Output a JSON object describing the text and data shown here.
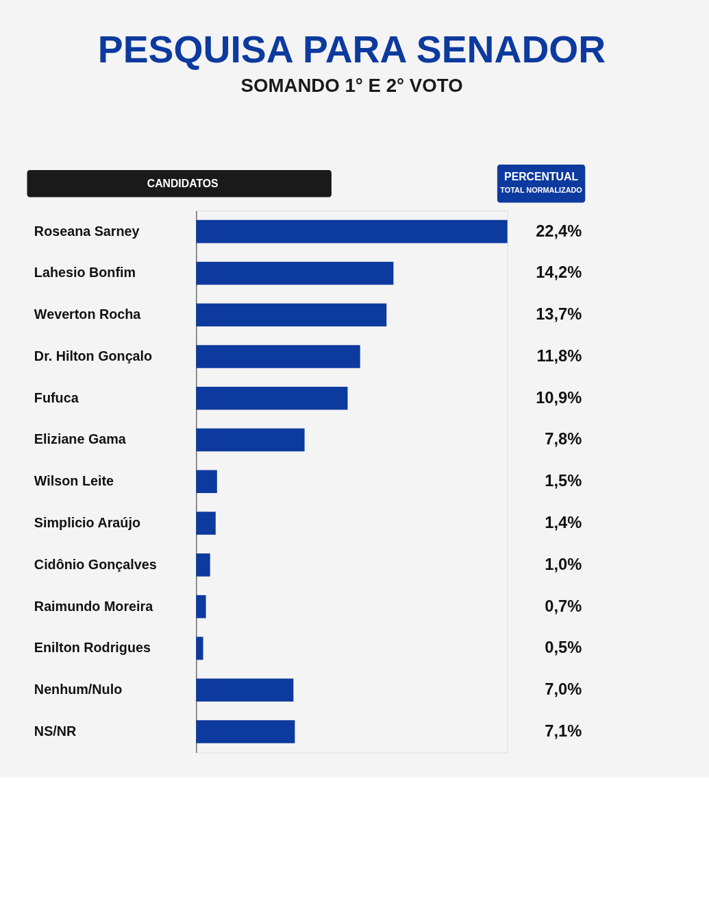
{
  "chart_data": {
    "type": "bar",
    "orientation": "horizontal",
    "title": "PESQUISA PARA SENADOR",
    "subtitle": "SOMANDO 1° E 2° VOTO",
    "annotations": [
      "CANDIDATOS",
      "PERCENTUAL",
      "TOTAL NORMALIZADO"
    ],
    "categories": [
      "Roseana Sarney",
      "Lahesio Bonfim",
      "Weverton Rocha",
      "Dr. Hilton Gonçalo",
      "Fufuca",
      "Eliziane Gama",
      "Wilson Leite",
      "Simplicio Araújo",
      "Cidônio Gonçalves",
      "Raimundo Moreira",
      "Enilton Rodrigues",
      "Nenhum/Nulo",
      "NS/NR"
    ],
    "values": [
      22.4,
      14.2,
      13.7,
      11.8,
      10.9,
      7.8,
      1.5,
      1.4,
      1.0,
      0.7,
      0.5,
      7.0,
      7.1
    ],
    "value_labels": [
      "22,4%",
      "14,2%",
      "13,7%",
      "11,8%",
      "10,9%",
      "7,8%",
      "1,5%",
      "1,4%",
      "1,0%",
      "0,7%",
      "0,5%",
      "7,0%",
      "7,1%"
    ],
    "color": "#0d3a9e"
  }
}
